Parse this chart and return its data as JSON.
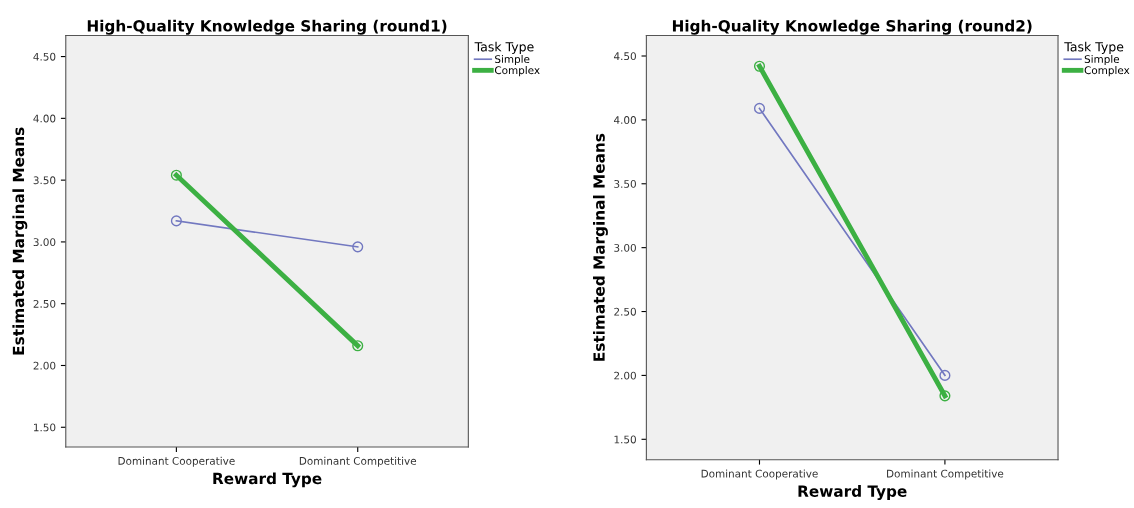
{
  "chart_data": [
    {
      "type": "line",
      "title": "High-Quality Knowledge Sharing (round1)",
      "xlabel": "Reward Type",
      "ylabel": "Estimated Marginal Means",
      "legend_title": "Task Type",
      "legend": "top right",
      "marker": "circle",
      "categories": [
        "Dominant Cooperative",
        "Dominant Competitive"
      ],
      "ylim": [
        1.34,
        4.67
      ],
      "yticks": [
        {
          "value": 1.5,
          "label": "1.50"
        },
        {
          "value": 2.0,
          "label": "2.00"
        },
        {
          "value": 2.5,
          "label": "2.50"
        },
        {
          "value": 3.0,
          "label": "3.00"
        },
        {
          "value": 3.5,
          "label": "3.50"
        },
        {
          "value": 4.0,
          "label": "4.00"
        },
        {
          "value": 4.5,
          "label": "4.50"
        }
      ],
      "grid": false,
      "series": [
        {
          "name": "Simple",
          "color": "#7278c0",
          "values": [
            3.17,
            2.96
          ]
        },
        {
          "name": "Complex",
          "color": "#3cb043",
          "values": [
            3.54,
            2.16
          ]
        }
      ]
    },
    {
      "type": "line",
      "title": "High-Quality Knowledge Sharing (round2)",
      "xlabel": "Reward Type",
      "ylabel": "Estimated Marginal Means",
      "legend_title": "Task Type",
      "legend": "top right",
      "marker": "circle",
      "categories": [
        "Dominant Cooperative",
        "Dominant Competitive"
      ],
      "ylim": [
        1.34,
        4.66
      ],
      "yticks": [
        {
          "value": 1.5,
          "label": "1.50"
        },
        {
          "value": 2.0,
          "label": "2.00"
        },
        {
          "value": 2.5,
          "label": "2.50"
        },
        {
          "value": 3.0,
          "label": "3.00"
        },
        {
          "value": 3.5,
          "label": "3.50"
        },
        {
          "value": 4.0,
          "label": "4.00"
        },
        {
          "value": 4.5,
          "label": "4.50"
        }
      ],
      "grid": false,
      "series": [
        {
          "name": "Simple",
          "color": "#7278c0",
          "values": [
            4.09,
            2.0
          ]
        },
        {
          "name": "Complex",
          "color": "#3cb043",
          "values": [
            4.42,
            1.84
          ]
        }
      ]
    }
  ]
}
